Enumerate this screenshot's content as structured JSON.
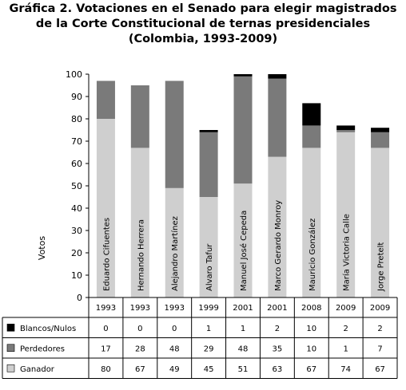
{
  "title_lines": [
    "Gráfica 2. Votaciones en el Senado para elegir magistrados",
    "de la Corte Constitucional de ternas presidenciales",
    "(Colombia, 1993-2009)"
  ],
  "chart_data": {
    "type": "bar",
    "stacked": true,
    "ylabel": "Votos",
    "ylim": [
      0,
      100
    ],
    "yticks": [
      0,
      10,
      20,
      30,
      40,
      50,
      60,
      70,
      80,
      90,
      100
    ],
    "categories": [
      "Eduardo Cifuentes",
      "Hernando Herrera",
      "Alejandro Martínez",
      "Alvaro Tafur",
      "Manuel José Cepeda",
      "Marco Gerardo Monroy",
      "Mauricio González",
      "María Victoria Calle",
      "Jorge Pretelt"
    ],
    "years": [
      "1993",
      "1993",
      "1993",
      "1999",
      "2001",
      "2001",
      "2008",
      "2009",
      "2009"
    ],
    "series": [
      {
        "name": "Ganador",
        "color": "#cfcfcf",
        "values": [
          80,
          67,
          49,
          45,
          51,
          63,
          67,
          74,
          67
        ]
      },
      {
        "name": "Perdedores",
        "color": "#7a7a7a",
        "values": [
          17,
          28,
          48,
          29,
          48,
          35,
          10,
          1,
          7
        ]
      },
      {
        "name": "Blancos/Nulos",
        "color": "#000000",
        "values": [
          0,
          0,
          0,
          1,
          1,
          2,
          10,
          2,
          2
        ]
      }
    ],
    "table_order": [
      "Blancos/Nulos",
      "Perdedores",
      "Ganador"
    ],
    "grid": false
  }
}
